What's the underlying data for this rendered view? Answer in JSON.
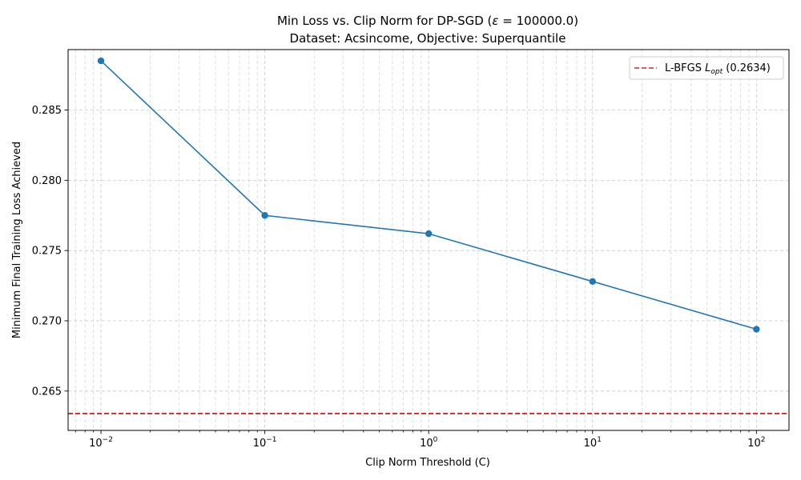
{
  "chart_data": {
    "type": "line",
    "title_line1_prefix": "Min Loss vs. Clip Norm for DP-SGD (",
    "title_line1_epsilon": "ε",
    "title_line1_suffix": " = 100000.0)",
    "title_line2": "Dataset: Acsincome, Objective: Superquantile",
    "xlabel": "Clip Norm Threshold (C)",
    "ylabel": "Minimum Final Training Loss Achieved",
    "xscale": "log",
    "xlim": [
      0.0063,
      158
    ],
    "ylim": [
      0.2622,
      0.2893
    ],
    "x": [
      0.01,
      0.1,
      1,
      10,
      100
    ],
    "y": [
      0.2885,
      0.2775,
      0.2762,
      0.2728,
      0.2694
    ],
    "series_color": "#1f77b4",
    "xticks": [
      {
        "value": 0.01,
        "base": "10",
        "exp": "−2"
      },
      {
        "value": 0.1,
        "base": "10",
        "exp": "−1"
      },
      {
        "value": 1,
        "base": "10",
        "exp": "0"
      },
      {
        "value": 10,
        "base": "10",
        "exp": "1"
      },
      {
        "value": 100,
        "base": "10",
        "exp": "2"
      }
    ],
    "yticks": [
      "0.265",
      "0.270",
      "0.275",
      "0.280",
      "0.285"
    ],
    "reference_line": {
      "value": 0.2634,
      "color": "#d62728",
      "label_prefix": "L-BFGS ",
      "label_symbol": "L",
      "label_subscript": "opt",
      "label_suffix": " (0.2634)"
    },
    "grid": true,
    "legend_position": "top-right"
  }
}
